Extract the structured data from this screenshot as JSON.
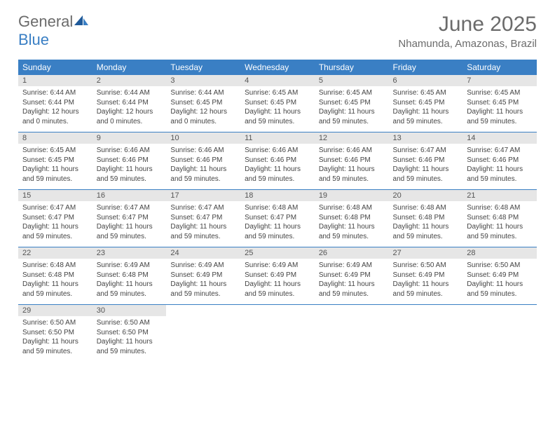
{
  "brand": {
    "text_gray": "General",
    "text_blue": "Blue"
  },
  "title": "June 2025",
  "location": "Nhamunda, Amazonas, Brazil",
  "colors": {
    "header_bg": "#3a7fc4",
    "header_text": "#ffffff",
    "daynum_bg": "#e6e6e6",
    "body_text": "#444444",
    "rule": "#3a7fc4",
    "page_bg": "#ffffff",
    "logo_gray": "#6b6b6b",
    "logo_blue": "#3a7fc4"
  },
  "weekdays": [
    "Sunday",
    "Monday",
    "Tuesday",
    "Wednesday",
    "Thursday",
    "Friday",
    "Saturday"
  ],
  "weeks": [
    [
      {
        "n": "1",
        "sr": "6:44 AM",
        "ss": "6:44 PM",
        "dl": "12 hours and 0 minutes."
      },
      {
        "n": "2",
        "sr": "6:44 AM",
        "ss": "6:44 PM",
        "dl": "12 hours and 0 minutes."
      },
      {
        "n": "3",
        "sr": "6:44 AM",
        "ss": "6:45 PM",
        "dl": "12 hours and 0 minutes."
      },
      {
        "n": "4",
        "sr": "6:45 AM",
        "ss": "6:45 PM",
        "dl": "11 hours and 59 minutes."
      },
      {
        "n": "5",
        "sr": "6:45 AM",
        "ss": "6:45 PM",
        "dl": "11 hours and 59 minutes."
      },
      {
        "n": "6",
        "sr": "6:45 AM",
        "ss": "6:45 PM",
        "dl": "11 hours and 59 minutes."
      },
      {
        "n": "7",
        "sr": "6:45 AM",
        "ss": "6:45 PM",
        "dl": "11 hours and 59 minutes."
      }
    ],
    [
      {
        "n": "8",
        "sr": "6:45 AM",
        "ss": "6:45 PM",
        "dl": "11 hours and 59 minutes."
      },
      {
        "n": "9",
        "sr": "6:46 AM",
        "ss": "6:46 PM",
        "dl": "11 hours and 59 minutes."
      },
      {
        "n": "10",
        "sr": "6:46 AM",
        "ss": "6:46 PM",
        "dl": "11 hours and 59 minutes."
      },
      {
        "n": "11",
        "sr": "6:46 AM",
        "ss": "6:46 PM",
        "dl": "11 hours and 59 minutes."
      },
      {
        "n": "12",
        "sr": "6:46 AM",
        "ss": "6:46 PM",
        "dl": "11 hours and 59 minutes."
      },
      {
        "n": "13",
        "sr": "6:47 AM",
        "ss": "6:46 PM",
        "dl": "11 hours and 59 minutes."
      },
      {
        "n": "14",
        "sr": "6:47 AM",
        "ss": "6:46 PM",
        "dl": "11 hours and 59 minutes."
      }
    ],
    [
      {
        "n": "15",
        "sr": "6:47 AM",
        "ss": "6:47 PM",
        "dl": "11 hours and 59 minutes."
      },
      {
        "n": "16",
        "sr": "6:47 AM",
        "ss": "6:47 PM",
        "dl": "11 hours and 59 minutes."
      },
      {
        "n": "17",
        "sr": "6:47 AM",
        "ss": "6:47 PM",
        "dl": "11 hours and 59 minutes."
      },
      {
        "n": "18",
        "sr": "6:48 AM",
        "ss": "6:47 PM",
        "dl": "11 hours and 59 minutes."
      },
      {
        "n": "19",
        "sr": "6:48 AM",
        "ss": "6:48 PM",
        "dl": "11 hours and 59 minutes."
      },
      {
        "n": "20",
        "sr": "6:48 AM",
        "ss": "6:48 PM",
        "dl": "11 hours and 59 minutes."
      },
      {
        "n": "21",
        "sr": "6:48 AM",
        "ss": "6:48 PM",
        "dl": "11 hours and 59 minutes."
      }
    ],
    [
      {
        "n": "22",
        "sr": "6:48 AM",
        "ss": "6:48 PM",
        "dl": "11 hours and 59 minutes."
      },
      {
        "n": "23",
        "sr": "6:49 AM",
        "ss": "6:48 PM",
        "dl": "11 hours and 59 minutes."
      },
      {
        "n": "24",
        "sr": "6:49 AM",
        "ss": "6:49 PM",
        "dl": "11 hours and 59 minutes."
      },
      {
        "n": "25",
        "sr": "6:49 AM",
        "ss": "6:49 PM",
        "dl": "11 hours and 59 minutes."
      },
      {
        "n": "26",
        "sr": "6:49 AM",
        "ss": "6:49 PM",
        "dl": "11 hours and 59 minutes."
      },
      {
        "n": "27",
        "sr": "6:50 AM",
        "ss": "6:49 PM",
        "dl": "11 hours and 59 minutes."
      },
      {
        "n": "28",
        "sr": "6:50 AM",
        "ss": "6:49 PM",
        "dl": "11 hours and 59 minutes."
      }
    ],
    [
      {
        "n": "29",
        "sr": "6:50 AM",
        "ss": "6:50 PM",
        "dl": "11 hours and 59 minutes."
      },
      {
        "n": "30",
        "sr": "6:50 AM",
        "ss": "6:50 PM",
        "dl": "11 hours and 59 minutes."
      },
      null,
      null,
      null,
      null,
      null
    ]
  ],
  "labels": {
    "sunrise": "Sunrise:",
    "sunset": "Sunset:",
    "daylight": "Daylight:"
  }
}
